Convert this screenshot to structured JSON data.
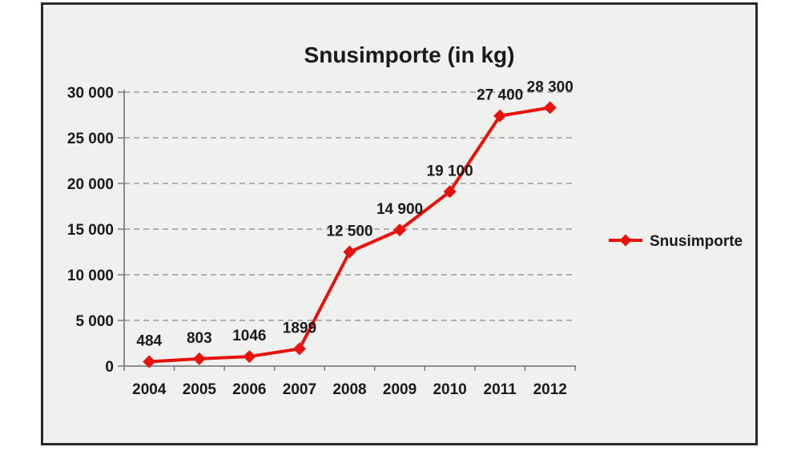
{
  "chart_data": {
    "type": "line",
    "title": "Snusimporte (in kg)",
    "categories": [
      "2004",
      "2005",
      "2006",
      "2007",
      "2008",
      "2009",
      "2010",
      "2011",
      "2012"
    ],
    "series": [
      {
        "name": "Snusimporte",
        "values": [
          484,
          803,
          1046,
          1899,
          12500,
          14900,
          19100,
          27400,
          28300
        ],
        "color": "#e8120c",
        "marker": "diamond"
      }
    ],
    "data_labels": [
      "484",
      "803",
      "1046",
      "1899",
      "12 500",
      "14 900",
      "19 100",
      "27 400",
      "28 300"
    ],
    "y_tick_values": [
      0,
      5000,
      10000,
      15000,
      20000,
      25000,
      30000
    ],
    "y_tick_labels": [
      "0",
      "5 000",
      "10 000",
      "15 000",
      "20 000",
      "25 000",
      "30 000"
    ],
    "ylim": [
      0,
      30000
    ],
    "xlabel": "",
    "ylabel": "",
    "grid": "dashed-horizontal",
    "legend_position": "right",
    "colors": {
      "series_red": "#e8120c",
      "gridline": "#9a9a9a",
      "axis": "#808080",
      "text": "#1a1a1a",
      "plot_background": "#f0f0ef",
      "frame_border": "#27272e"
    }
  },
  "legend": {
    "label": "Snusimporte"
  }
}
